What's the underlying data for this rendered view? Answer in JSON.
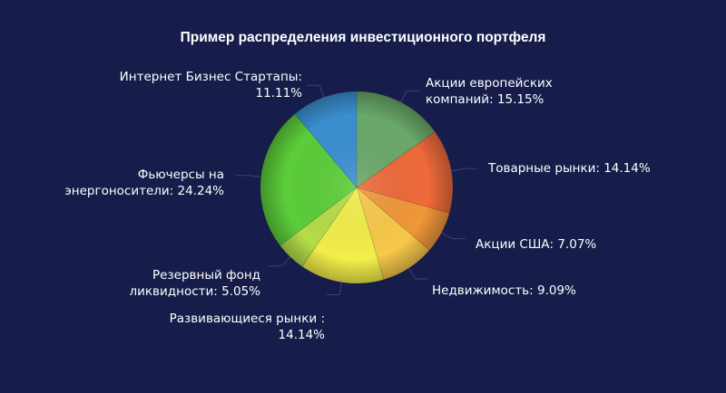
{
  "chart_data": {
    "type": "pie",
    "title": "Пример распределения инвестиционного портфеля",
    "start_angle_deg": 0,
    "direction": "clockwise",
    "center": [
      393,
      207
    ],
    "radius": 106,
    "slices": [
      {
        "name": "Акции европейских компаний",
        "value": 15.15,
        "color": "#6aa86a",
        "label_line1": "Акции европейских",
        "label_line2": "компаний: 15.15%"
      },
      {
        "name": "Товарные рынки",
        "value": 14.14,
        "color": "#ee6a3a",
        "label_line1": "Товарные рынки: 14.14%",
        "label_line2": ""
      },
      {
        "name": "Акции США",
        "value": 7.07,
        "color": "#f0973a",
        "label_line1": "Акции США: 7.07%",
        "label_line2": ""
      },
      {
        "name": "Недвижимость",
        "value": 9.09,
        "color": "#f7c84a",
        "label_line1": "Недвижимость: 9.09%",
        "label_line2": ""
      },
      {
        "name": "Развивающиеся рынки",
        "value": 14.14,
        "color": "#f2ee4a",
        "label_line1": "Развивающиеся рынки :",
        "label_line2": "14.14%"
      },
      {
        "name": "Резервный фонд ликвидности",
        "value": 5.05,
        "color": "#b5dc4a",
        "label_line1": "Резервный фонд",
        "label_line2": "ликвидности: 5.05%"
      },
      {
        "name": "Фьючерсы на энергоносители",
        "value": 24.24,
        "color": "#5ccd3a",
        "label_line1": "Фьючерсы на",
        "label_line2": "энергоносители: 24.24%"
      },
      {
        "name": "Интернет Бизнес Стартапы",
        "value": 11.11,
        "color": "#3a8fd0",
        "label_line1": "Интернет Бизнес Стартапы:",
        "label_line2": "11.11%"
      }
    ],
    "legend": "none",
    "data_labels": "outside with leader lines"
  },
  "colors": {
    "background": "#161d4a",
    "text": "#ffffff",
    "leader_line": "#3a4270"
  }
}
